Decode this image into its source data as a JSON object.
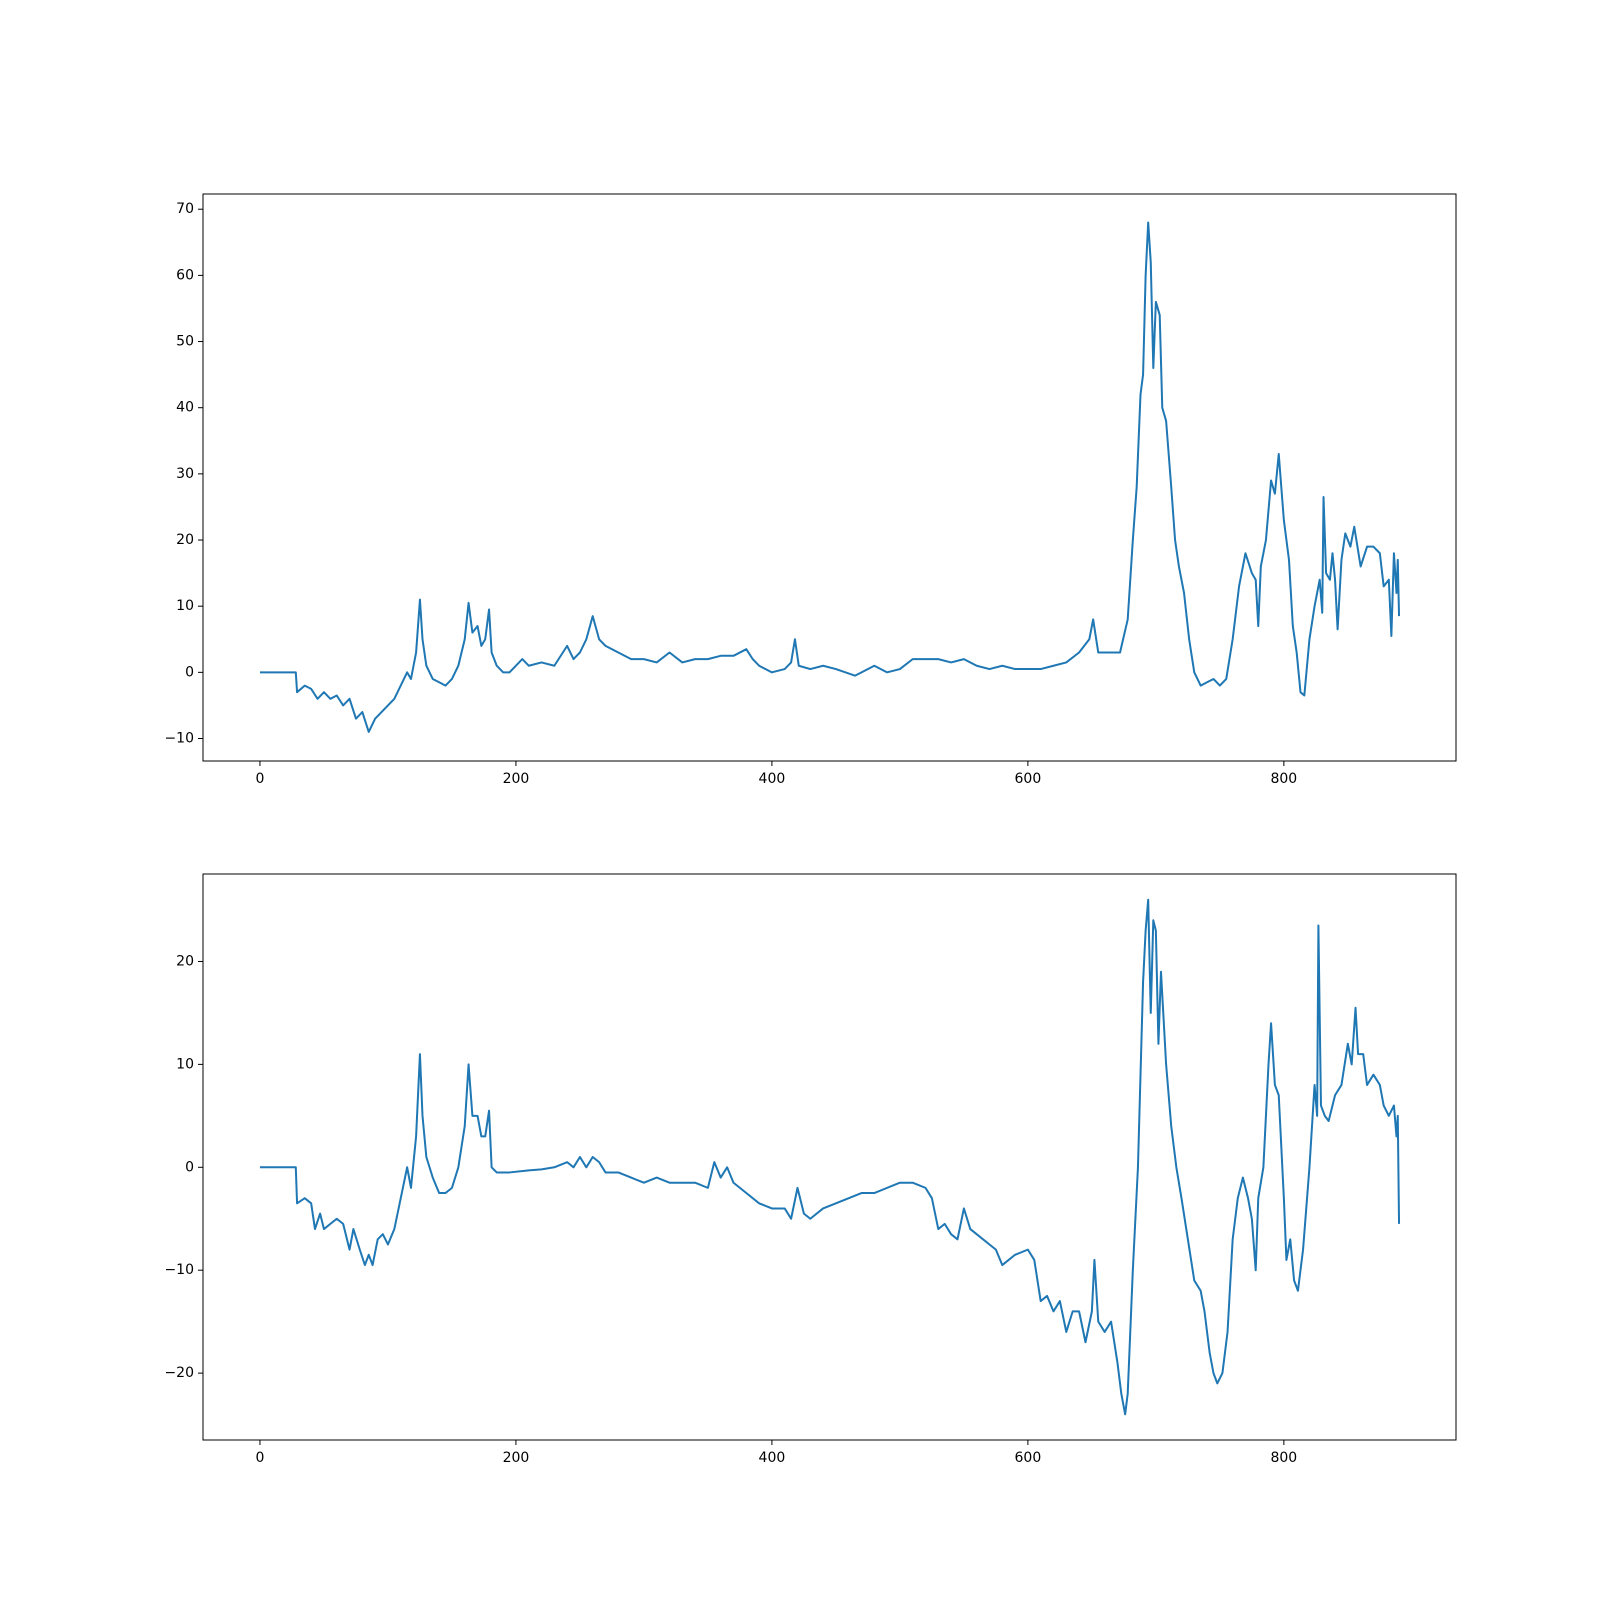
{
  "chart_data": [
    {
      "type": "line",
      "color": "#1f77b4",
      "xlim": [
        -44.5,
        934.5
      ],
      "ylim": [
        -13.4,
        72.3
      ],
      "xticks": [
        0,
        200,
        400,
        600,
        800
      ],
      "yticks": [
        {
          "value": -10,
          "label": "−10"
        },
        0,
        10,
        20,
        30,
        40,
        50,
        60,
        70
      ],
      "x": [
        0,
        28,
        29,
        35,
        40,
        45,
        50,
        55,
        60,
        65,
        70,
        75,
        80,
        85,
        90,
        95,
        100,
        105,
        110,
        115,
        118,
        122,
        125,
        127,
        130,
        135,
        140,
        145,
        150,
        155,
        160,
        163,
        166,
        170,
        173,
        176,
        179,
        181,
        185,
        190,
        195,
        200,
        205,
        210,
        220,
        230,
        240,
        245,
        250,
        255,
        260,
        265,
        270,
        280,
        290,
        300,
        310,
        320,
        330,
        340,
        350,
        360,
        370,
        380,
        385,
        390,
        400,
        410,
        415,
        418,
        421,
        430,
        440,
        450,
        465,
        470,
        480,
        490,
        500,
        510,
        520,
        530,
        540,
        550,
        560,
        570,
        580,
        590,
        600,
        610,
        620,
        630,
        640,
        648,
        651,
        655,
        665,
        672,
        678,
        682,
        685,
        688,
        690,
        692,
        694,
        696,
        698,
        700,
        703,
        705,
        708,
        712,
        715,
        718,
        722,
        726,
        730,
        735,
        740,
        745,
        750,
        755,
        760,
        765,
        770,
        775,
        778,
        780,
        782,
        786,
        790,
        793,
        796,
        800,
        804,
        807,
        810,
        813,
        816,
        820,
        824,
        828,
        830,
        831,
        833,
        836,
        838,
        840,
        842,
        845,
        848,
        852,
        855,
        860,
        865,
        870,
        875,
        878,
        882,
        884,
        886,
        888,
        889,
        890
      ],
      "values": [
        0,
        0,
        -3,
        -2,
        -2.5,
        -4,
        -3,
        -4,
        -3.5,
        -5,
        -4,
        -7,
        -6,
        -9,
        -7,
        -6,
        -5,
        -4,
        -2,
        0,
        -1,
        3,
        11,
        5,
        1,
        -1,
        -1.5,
        -2,
        -1,
        1,
        5,
        10.5,
        6,
        7,
        4,
        5,
        9.5,
        3,
        1,
        0,
        0,
        1,
        2,
        1,
        1.5,
        1,
        4,
        2,
        3,
        5,
        8.5,
        5,
        4,
        3,
        2,
        2,
        1.5,
        3,
        1.5,
        2,
        2,
        2.5,
        2.5,
        3.5,
        2,
        1,
        0,
        0.5,
        1.5,
        5,
        1,
        0.5,
        1,
        0.5,
        -0.5,
        0,
        1,
        0,
        0.5,
        2,
        2,
        2,
        1.5,
        2,
        1,
        0.5,
        1,
        0.5,
        0.5,
        0.5,
        1,
        1.5,
        3,
        5,
        8,
        3,
        3,
        3,
        8,
        20,
        28,
        42,
        45,
        60,
        68,
        62,
        46,
        56,
        54,
        40,
        38,
        28,
        20,
        16,
        12,
        5,
        0,
        -2,
        -1.5,
        -1,
        -2,
        -1,
        5,
        13,
        18,
        15,
        14,
        7,
        16,
        20,
        29,
        27,
        33,
        23,
        17,
        7,
        3,
        -3,
        -3.5,
        5,
        10,
        14,
        9,
        26.5,
        15,
        14,
        18,
        14,
        6.5,
        17,
        21,
        19,
        22,
        16,
        19,
        19,
        18,
        13,
        14,
        5.5,
        18,
        12,
        17,
        8.5
      ]
    },
    {
      "type": "line",
      "color": "#1f77b4",
      "xlim": [
        -44.5,
        934.5
      ],
      "ylim": [
        -26.5,
        28.5
      ],
      "xticks": [
        0,
        200,
        400,
        600,
        800
      ],
      "yticks": [
        {
          "value": -20,
          "label": "−20"
        },
        {
          "value": -10,
          "label": "−10"
        },
        0,
        10,
        20
      ],
      "x": [
        0,
        28,
        29,
        35,
        40,
        43,
        47,
        50,
        55,
        60,
        65,
        70,
        73,
        78,
        82,
        85,
        88,
        92,
        96,
        100,
        105,
        110,
        115,
        118,
        122,
        125,
        127,
        130,
        135,
        140,
        145,
        150,
        155,
        160,
        163,
        166,
        170,
        173,
        176,
        179,
        181,
        185,
        195,
        210,
        220,
        230,
        240,
        245,
        250,
        255,
        260,
        265,
        270,
        280,
        290,
        300,
        310,
        320,
        330,
        340,
        350,
        355,
        360,
        365,
        370,
        380,
        390,
        400,
        410,
        415,
        420,
        425,
        430,
        440,
        450,
        460,
        470,
        480,
        490,
        500,
        510,
        520,
        525,
        530,
        535,
        540,
        545,
        550,
        555,
        560,
        570,
        575,
        580,
        590,
        600,
        605,
        610,
        615,
        620,
        625,
        630,
        635,
        640,
        645,
        650,
        652,
        655,
        660,
        665,
        670,
        673,
        676,
        678,
        682,
        686,
        690,
        692,
        694,
        696,
        698,
        700,
        702,
        704,
        708,
        712,
        716,
        720,
        725,
        730,
        735,
        738,
        742,
        745,
        748,
        752,
        756,
        760,
        764,
        768,
        772,
        775,
        778,
        780,
        784,
        788,
        790,
        793,
        796,
        800,
        802,
        805,
        808,
        811,
        815,
        820,
        824,
        826,
        827,
        829,
        832,
        835,
        840,
        845,
        850,
        853,
        856,
        858,
        862,
        865,
        870,
        875,
        878,
        882,
        886,
        888,
        889,
        890
      ],
      "values": [
        0,
        0,
        -3.5,
        -3,
        -3.5,
        -6,
        -4.5,
        -6,
        -5.5,
        -5,
        -5.5,
        -8,
        -6,
        -8,
        -9.5,
        -8.5,
        -9.5,
        -7,
        -6.5,
        -7.5,
        -6,
        -3,
        0,
        -2,
        3,
        11,
        5,
        1,
        -1,
        -2.5,
        -2.5,
        -2,
        0,
        4,
        10,
        5,
        5,
        3,
        3,
        5.5,
        0,
        -0.5,
        -0.5,
        -0.3,
        -0.2,
        0,
        0.5,
        0,
        1,
        0,
        1,
        0.5,
        -0.5,
        -0.5,
        -1,
        -1.5,
        -1,
        -1.5,
        -1.5,
        -1.5,
        -2,
        0.5,
        -1,
        0,
        -1.5,
        -2.5,
        -3.5,
        -4,
        -4,
        -5,
        -2,
        -4.5,
        -5,
        -4,
        -3.5,
        -3,
        -2.5,
        -2.5,
        -2,
        -1.5,
        -1.5,
        -2,
        -3,
        -6,
        -5.5,
        -6.5,
        -7,
        -4,
        -6,
        -6.5,
        -7.5,
        -8,
        -9.5,
        -8.5,
        -8,
        -9,
        -13,
        -12.5,
        -14,
        -13,
        -16,
        -14,
        -14,
        -17,
        -14,
        -9,
        -15,
        -16,
        -15,
        -19,
        -22,
        -24,
        -22,
        -10,
        0,
        18,
        23,
        26,
        15,
        24,
        23,
        12,
        19,
        10,
        4,
        0,
        -3,
        -7,
        -11,
        -12,
        -14,
        -18,
        -20,
        -21,
        -20,
        -16,
        -7,
        -3,
        -1,
        -3,
        -5,
        -10,
        -3,
        0,
        10,
        14,
        8,
        7,
        -3,
        -9,
        -7,
        -11,
        -12,
        -8,
        0,
        8,
        5,
        23.5,
        6,
        5,
        4.5,
        7,
        8,
        12,
        10,
        15.5,
        11,
        11,
        8,
        9,
        8,
        6,
        5,
        6,
        3,
        5,
        -5.5
      ]
    }
  ]
}
